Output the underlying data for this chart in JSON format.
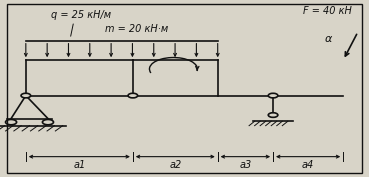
{
  "bg_color": "#d8d4c8",
  "line_color": "#111111",
  "figsize": [
    3.69,
    1.77
  ],
  "dpi": 100,
  "label_q": "q = 25 кН/м",
  "label_F": "F = 40 кН",
  "label_m": "m = 20 кН·м",
  "label_a1": "a1",
  "label_a2": "a2",
  "label_a3": "a3",
  "label_a4": "a4",
  "label_alpha": "α",
  "bx0": 0.07,
  "bx1": 0.36,
  "bx2": 0.59,
  "bx3": 0.74,
  "bx4": 0.93,
  "by": 0.46,
  "bt": 0.66
}
